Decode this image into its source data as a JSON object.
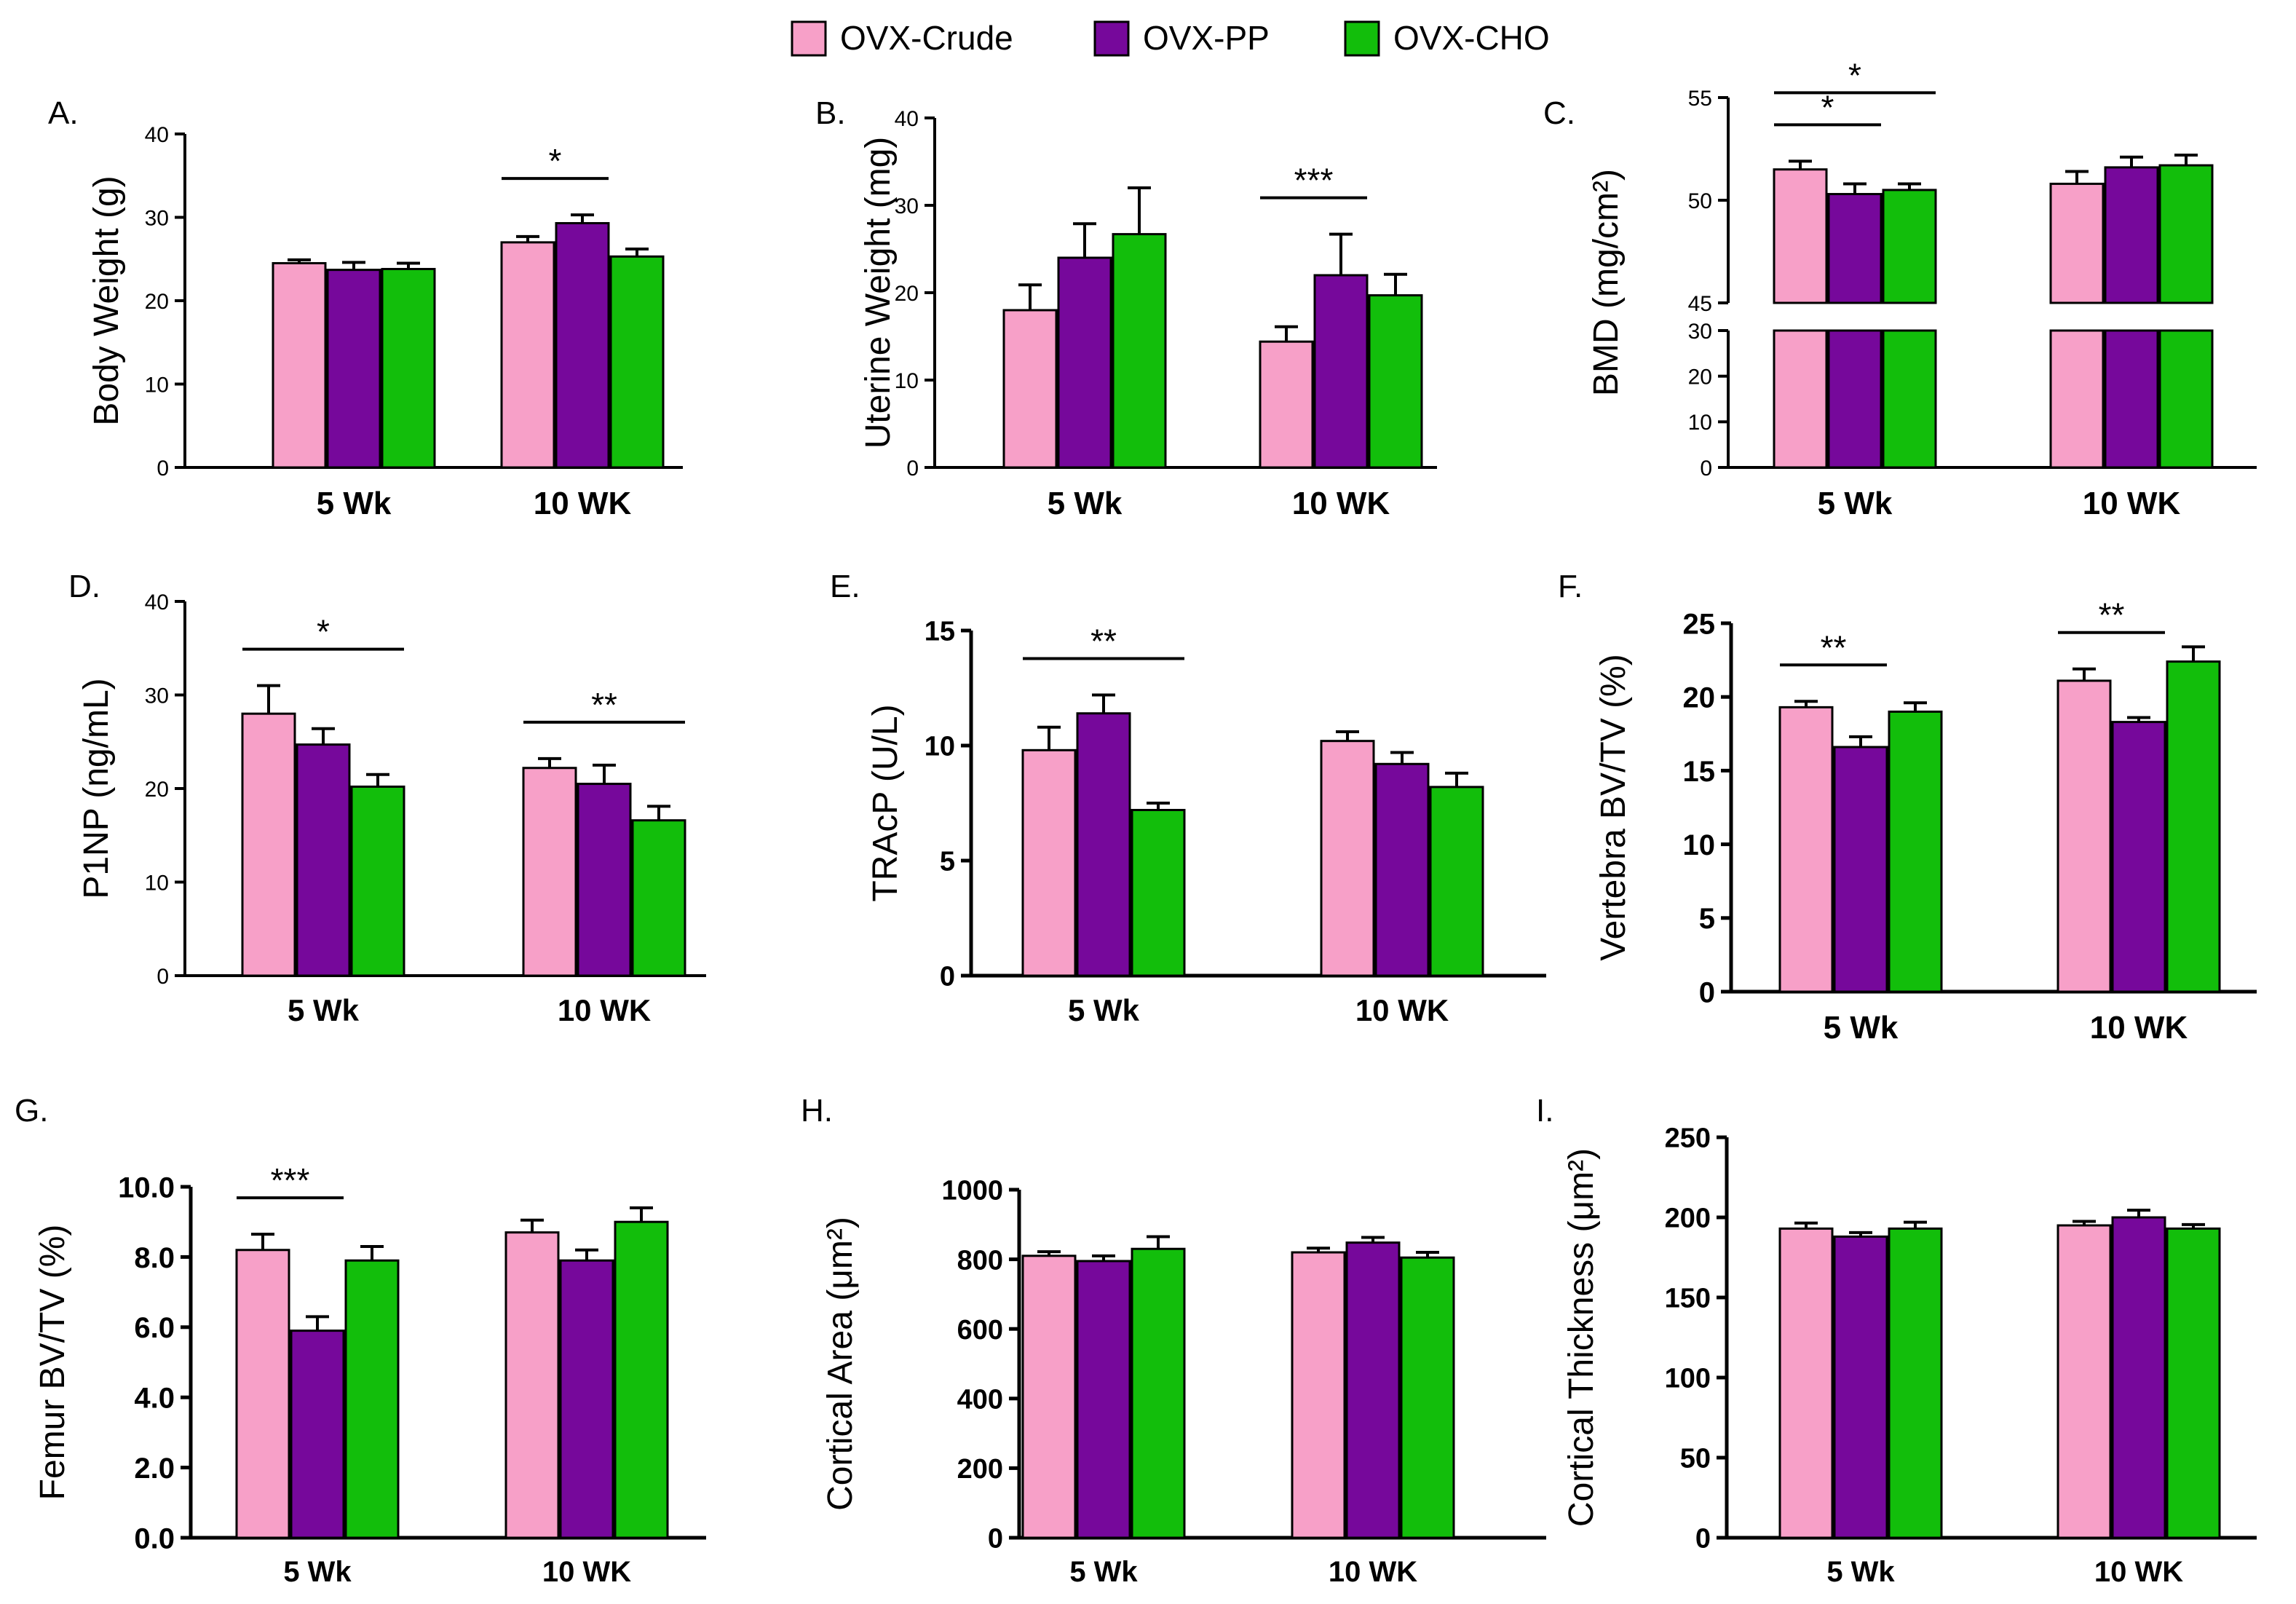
{
  "legend": [
    {
      "name": "OVX-Crude",
      "color": "#f7a0c8"
    },
    {
      "name": "OVX-PP",
      "color": "#76089b"
    },
    {
      "name": "OVX-CHO",
      "color": "#12be0b"
    }
  ],
  "chart_data": [
    {
      "panel": "A.",
      "type": "bar",
      "ylabel": "Body Weight (g)",
      "ylim": [
        0,
        40
      ],
      "yticks": [
        0,
        10,
        20,
        30,
        40
      ],
      "tick_labels": [
        "0",
        "10",
        "20",
        "30",
        "40"
      ],
      "categories": [
        "5 Wk",
        "10 WK"
      ],
      "series": [
        {
          "name": "OVX-Crude",
          "values": [
            24.5,
            27
          ],
          "errors": [
            0.4,
            0.7
          ]
        },
        {
          "name": "OVX-PP",
          "values": [
            23.7,
            29.3
          ],
          "errors": [
            0.9,
            1.0
          ]
        },
        {
          "name": "OVX-CHO",
          "values": [
            23.8,
            25.3
          ],
          "errors": [
            0.7,
            0.9
          ]
        }
      ],
      "significance": [
        {
          "group": 1,
          "from": 0,
          "to": 1,
          "label": "*"
        }
      ]
    },
    {
      "panel": "B.",
      "type": "bar",
      "ylabel": "Uterine Weight (mg)",
      "ylim": [
        0,
        40
      ],
      "yticks": [
        0,
        10,
        20,
        30,
        40
      ],
      "tick_labels": [
        "0",
        "10",
        "20",
        "30",
        "40"
      ],
      "categories": [
        "5 Wk",
        "10 WK"
      ],
      "series": [
        {
          "name": "OVX-Crude",
          "values": [
            18,
            14.4
          ],
          "errors": [
            2.9,
            1.7
          ]
        },
        {
          "name": "OVX-PP",
          "values": [
            24,
            22
          ],
          "errors": [
            3.9,
            4.7
          ]
        },
        {
          "name": "OVX-CHO",
          "values": [
            26.7,
            19.7
          ],
          "errors": [
            5.3,
            2.4
          ]
        }
      ],
      "significance": [
        {
          "group": 1,
          "from": 0,
          "to": 1,
          "label": "***"
        }
      ]
    },
    {
      "panel": "C.",
      "type": "bar",
      "ylabel": "BMD (mg/cm²)",
      "broken_axis": true,
      "ylim_lower": [
        0,
        30
      ],
      "ylim_upper": [
        45,
        55
      ],
      "yticks_lower": [
        0,
        10,
        20,
        30
      ],
      "yticks_upper": [
        45,
        50,
        55
      ],
      "tick_labels_lower": [
        "0",
        "10",
        "20",
        "30"
      ],
      "tick_labels_upper": [
        "45",
        "50",
        "55"
      ],
      "categories": [
        "5 Wk",
        "10 WK"
      ],
      "series": [
        {
          "name": "OVX-Crude",
          "values": [
            51.5,
            50.8
          ],
          "errors": [
            0.4,
            0.6
          ]
        },
        {
          "name": "OVX-PP",
          "values": [
            50.3,
            51.6
          ],
          "errors": [
            0.5,
            0.5
          ]
        },
        {
          "name": "OVX-CHO",
          "values": [
            50.5,
            51.7
          ],
          "errors": [
            0.3,
            0.5
          ]
        }
      ],
      "significance": [
        {
          "group": 0,
          "from": 0,
          "to": 1,
          "label": "*"
        },
        {
          "group": 0,
          "from": 0,
          "to": 2,
          "label": "*"
        }
      ]
    },
    {
      "panel": "D.",
      "type": "bar",
      "ylabel": "P1NP (ng/mL)",
      "ylim": [
        0,
        40
      ],
      "yticks": [
        0,
        10,
        20,
        30,
        40
      ],
      "tick_labels": [
        "0",
        "10",
        "20",
        "30",
        "40"
      ],
      "categories": [
        "5 Wk",
        "10 WK"
      ],
      "series": [
        {
          "name": "OVX-Crude",
          "values": [
            28,
            22.2
          ],
          "errors": [
            3.0,
            1.0
          ]
        },
        {
          "name": "OVX-PP",
          "values": [
            24.7,
            20.5
          ],
          "errors": [
            1.7,
            2.0
          ]
        },
        {
          "name": "OVX-CHO",
          "values": [
            20.2,
            16.6
          ],
          "errors": [
            1.3,
            1.5
          ]
        }
      ],
      "significance": [
        {
          "group": 0,
          "from": 0,
          "to": 2,
          "label": "*"
        },
        {
          "group": 1,
          "from": 0,
          "to": 2,
          "label": "**"
        }
      ]
    },
    {
      "panel": "E.",
      "type": "bar",
      "ylabel": "TRAcP (U/L)",
      "ylim": [
        0,
        15
      ],
      "yticks": [
        0,
        5,
        10,
        15
      ],
      "tick_labels": [
        "0",
        "5",
        "10",
        "15"
      ],
      "categories": [
        "5 Wk",
        "10 WK"
      ],
      "series": [
        {
          "name": "OVX-Crude",
          "values": [
            9.8,
            10.2
          ],
          "errors": [
            1.0,
            0.4
          ]
        },
        {
          "name": "OVX-PP",
          "values": [
            11.4,
            9.2
          ],
          "errors": [
            0.8,
            0.5
          ]
        },
        {
          "name": "OVX-CHO",
          "values": [
            7.2,
            8.2
          ],
          "errors": [
            0.3,
            0.6
          ]
        }
      ],
      "significance": [
        {
          "group": 0,
          "from": 0,
          "to": 2,
          "label": "**"
        }
      ]
    },
    {
      "panel": "F.",
      "type": "bar",
      "ylabel": "Vertebra BV/TV (%)",
      "ylim": [
        0,
        25
      ],
      "yticks": [
        0,
        5,
        10,
        15,
        20,
        25
      ],
      "tick_labels": [
        "0",
        "5",
        "10",
        "15",
        "20",
        "25"
      ],
      "categories": [
        "5 Wk",
        "10 WK"
      ],
      "series": [
        {
          "name": "OVX-Crude",
          "values": [
            19.3,
            21.1
          ],
          "errors": [
            0.4,
            0.8
          ]
        },
        {
          "name": "OVX-PP",
          "values": [
            16.6,
            18.3
          ],
          "errors": [
            0.7,
            0.3
          ]
        },
        {
          "name": "OVX-CHO",
          "values": [
            19,
            22.4
          ],
          "errors": [
            0.6,
            1.0
          ]
        }
      ],
      "significance": [
        {
          "group": 0,
          "from": 0,
          "to": 1,
          "label": "**"
        },
        {
          "group": 1,
          "from": 0,
          "to": 1,
          "label": "**"
        }
      ]
    },
    {
      "panel": "G.",
      "type": "bar",
      "ylabel": "Femur BV/TV (%)",
      "ylim": [
        0,
        10
      ],
      "yticks": [
        0,
        2,
        4,
        6,
        8,
        10
      ],
      "tick_labels": [
        "0.0",
        "2.0",
        "4.0",
        "6.0",
        "8.0",
        "10.0"
      ],
      "categories": [
        "5 Wk",
        "10 WK"
      ],
      "series": [
        {
          "name": "OVX-Crude",
          "values": [
            8.2,
            8.7
          ],
          "errors": [
            0.45,
            0.35
          ]
        },
        {
          "name": "OVX-PP",
          "values": [
            5.9,
            7.9
          ],
          "errors": [
            0.4,
            0.3
          ]
        },
        {
          "name": "OVX-CHO",
          "values": [
            7.9,
            9
          ],
          "errors": [
            0.4,
            0.4
          ]
        }
      ],
      "significance": [
        {
          "group": 0,
          "from": 0,
          "to": 1,
          "label": "***"
        }
      ]
    },
    {
      "panel": "H.",
      "type": "bar",
      "ylabel": "Cortical Area (μm²)",
      "ylim": [
        0,
        1000
      ],
      "yticks": [
        0,
        200,
        400,
        600,
        800,
        1000
      ],
      "tick_labels": [
        "0",
        "200",
        "400",
        "600",
        "800",
        "1000"
      ],
      "categories": [
        "5 Wk",
        "10 WK"
      ],
      "series": [
        {
          "name": "OVX-Crude",
          "values": [
            810,
            820
          ],
          "errors": [
            12,
            12
          ]
        },
        {
          "name": "OVX-PP",
          "values": [
            795,
            848
          ],
          "errors": [
            15,
            15
          ]
        },
        {
          "name": "OVX-CHO",
          "values": [
            830,
            805
          ],
          "errors": [
            35,
            15
          ]
        }
      ],
      "significance": []
    },
    {
      "panel": "I.",
      "type": "bar",
      "ylabel": "Cortical Thickness (μm²)",
      "ylim": [
        0,
        250
      ],
      "yticks": [
        0,
        50,
        100,
        150,
        200,
        250
      ],
      "tick_labels": [
        "0",
        "50",
        "100",
        "150",
        "200",
        "250"
      ],
      "categories": [
        "5 Wk",
        "10 WK"
      ],
      "series": [
        {
          "name": "OVX-Crude",
          "values": [
            193,
            195
          ],
          "errors": [
            3.5,
            2.5
          ]
        },
        {
          "name": "OVX-PP",
          "values": [
            188,
            200
          ],
          "errors": [
            2.5,
            4.5
          ]
        },
        {
          "name": "OVX-CHO",
          "values": [
            193,
            193
          ],
          "errors": [
            4,
            2.5
          ]
        }
      ],
      "significance": []
    }
  ]
}
